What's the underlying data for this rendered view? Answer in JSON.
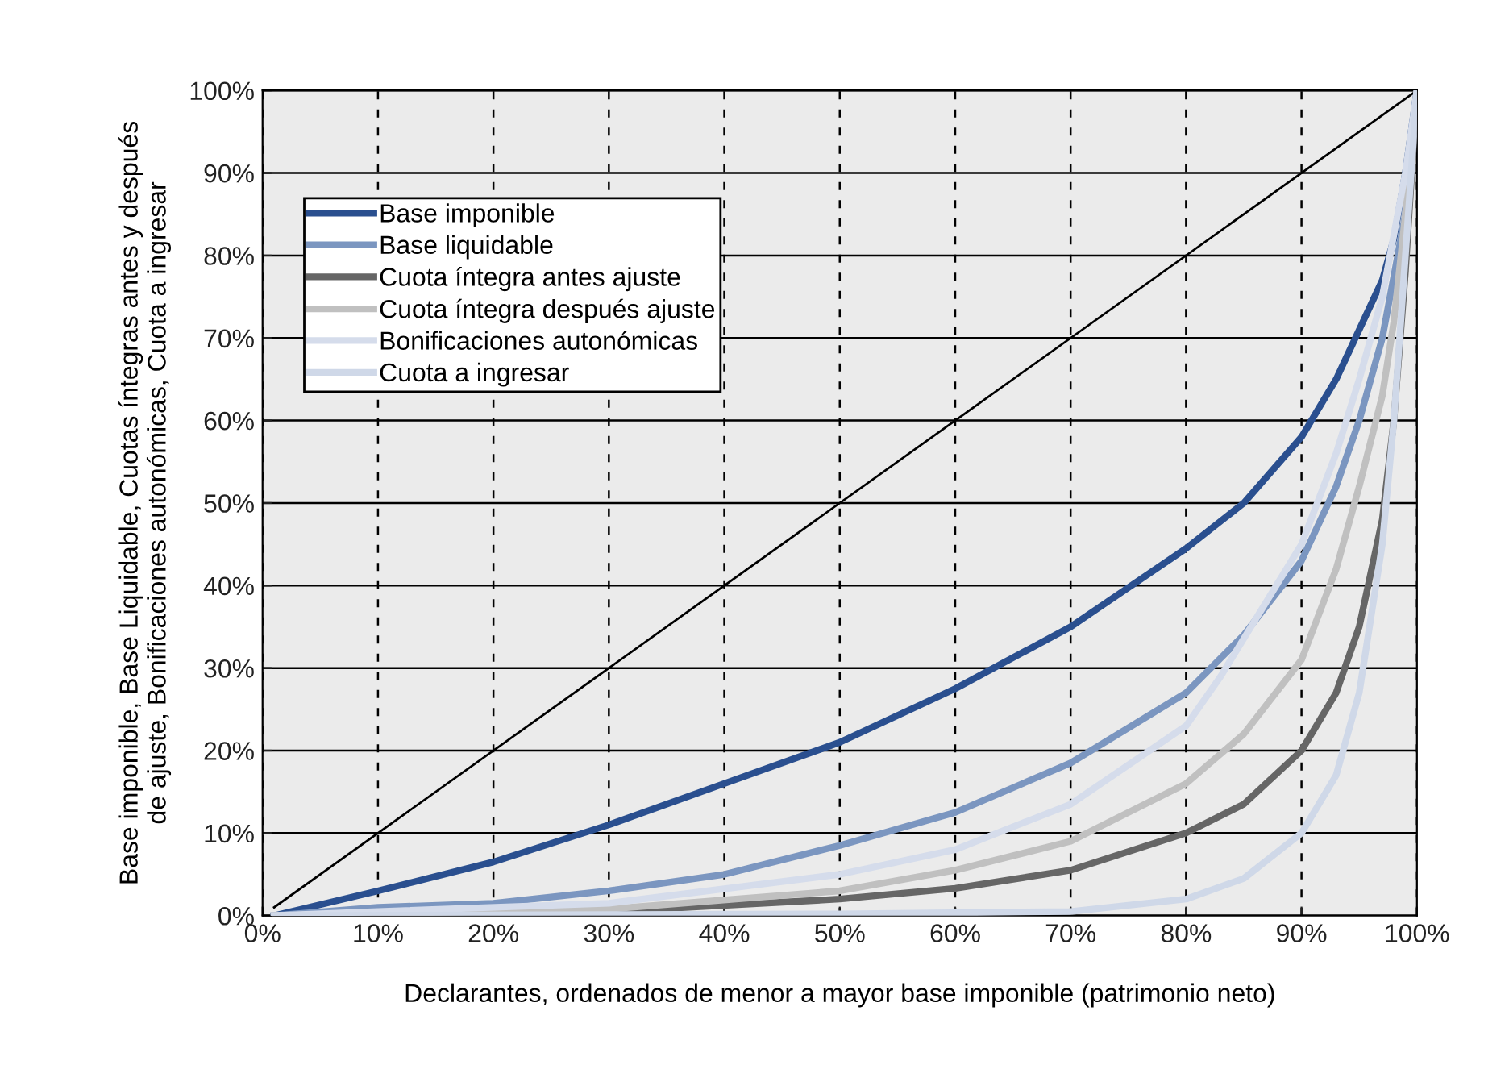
{
  "chart_data": {
    "type": "line",
    "xlabel": "Declarantes, ordenados de menor a mayor base imponible (patrimonio neto)",
    "ylabel": "Base imponible, Base Liquidable, Cuotas íntegras antes y después\nde ajuste, Bonificaciones autonómicas, Cuota a ingresar",
    "xlim": [
      0,
      100
    ],
    "ylim": [
      0,
      100
    ],
    "xticks": [
      {
        "value": 0,
        "label": "0%"
      },
      {
        "value": 10,
        "label": "10%"
      },
      {
        "value": 20,
        "label": "20%"
      },
      {
        "value": 30,
        "label": "30%"
      },
      {
        "value": 40,
        "label": "40%"
      },
      {
        "value": 50,
        "label": "50%"
      },
      {
        "value": 60,
        "label": "60%"
      },
      {
        "value": 70,
        "label": "70%"
      },
      {
        "value": 80,
        "label": "80%"
      },
      {
        "value": 90,
        "label": "90%"
      },
      {
        "value": 100,
        "label": "100%"
      }
    ],
    "yticks": [
      {
        "value": 0,
        "label": "0%"
      },
      {
        "value": 10,
        "label": "10%"
      },
      {
        "value": 20,
        "label": "20%"
      },
      {
        "value": 30,
        "label": "30%"
      },
      {
        "value": 40,
        "label": "40%"
      },
      {
        "value": 50,
        "label": "50%"
      },
      {
        "value": 60,
        "label": "60%"
      },
      {
        "value": 70,
        "label": "70%"
      },
      {
        "value": 80,
        "label": "80%"
      },
      {
        "value": 90,
        "label": "90%"
      },
      {
        "value": 100,
        "label": "100%"
      }
    ],
    "grid": true,
    "legend": "top left",
    "marker": "none",
    "line_style": "solid",
    "series": [
      {
        "color": "#000000",
        "x": [
          1,
          100
        ],
        "values": [
          1,
          100
        ]
      },
      {
        "name": "Base imponible",
        "color": "#2a4f8f",
        "x": [
          1,
          10,
          20,
          30,
          40,
          50,
          60,
          70,
          80,
          85,
          90,
          93,
          95,
          97,
          98,
          99,
          100
        ],
        "values": [
          0,
          3,
          6.5,
          11,
          16,
          21,
          27.5,
          35,
          44.5,
          50,
          58,
          65,
          71,
          77,
          82,
          90,
          100
        ]
      },
      {
        "name": "Base liquidable",
        "color": "#7b96c0",
        "x": [
          1,
          10,
          20,
          30,
          40,
          50,
          60,
          70,
          80,
          85,
          90,
          93,
          95,
          97,
          99,
          100
        ],
        "values": [
          0,
          1,
          1.5,
          3,
          5,
          8.5,
          12.5,
          18.5,
          27,
          34,
          43,
          52,
          60,
          70,
          85,
          100
        ]
      },
      {
        "name": "Cuota íntegra antes ajuste",
        "color": "#666666",
        "x": [
          1,
          30,
          50,
          60,
          70,
          80,
          85,
          90,
          93,
          95,
          97,
          98,
          99,
          100
        ],
        "values": [
          0,
          0.5,
          2,
          3.3,
          5.5,
          10,
          13.5,
          20,
          27,
          35,
          48,
          60,
          78,
          100
        ]
      },
      {
        "name": "Cuota íntegra después ajuste",
        "color": "#c0c0c0",
        "x": [
          1,
          30,
          50,
          60,
          70,
          80,
          85,
          90,
          93,
          95,
          97,
          98,
          99,
          100
        ],
        "values": [
          0,
          0.8,
          3,
          5.5,
          9,
          16,
          22,
          31,
          42,
          52,
          63,
          72,
          85,
          100
        ]
      },
      {
        "name": "Bonificaciones autonómicas",
        "color": "#d5dceb",
        "x": [
          1,
          10,
          30,
          50,
          60,
          70,
          80,
          83,
          90,
          93,
          95,
          97,
          99,
          100
        ],
        "values": [
          0,
          0.5,
          1.5,
          5,
          8,
          13.5,
          23,
          29,
          45,
          56,
          65,
          75,
          90,
          100
        ]
      },
      {
        "name": "Cuota a ingresar",
        "color": "#cfd8e8",
        "x": [
          1,
          50,
          70,
          80,
          85,
          90,
          93,
          95,
          97,
          98,
          99,
          100
        ],
        "values": [
          0,
          0.2,
          0.5,
          2,
          4.5,
          10,
          17,
          27,
          45,
          60,
          80,
          100
        ]
      }
    ]
  }
}
